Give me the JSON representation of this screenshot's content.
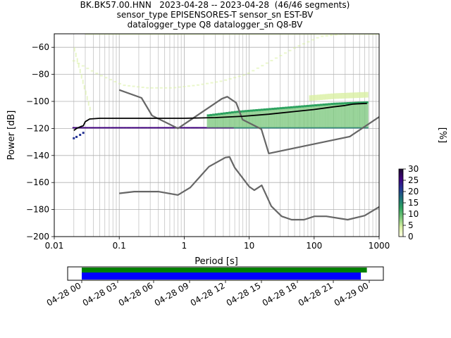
{
  "title_lines": [
    "BK.BK57.00.HNN   2023-04-28 -- 2023-04-28  (46/46 segments)",
    "sensor_type EPISENSORES-T sensor_sn EST-BV",
    "datalogger_type Q8 datalogger_sn Q8-BV"
  ],
  "colorbar": {
    "label": "[%]",
    "ticks": [
      "0",
      "5",
      "10",
      "15",
      "20",
      "25",
      "30"
    ],
    "range": [
      0,
      30
    ],
    "colors": [
      "#ffffe5",
      "#d9f0a3",
      "#78c679",
      "#2ca25f",
      "#1d6f7a",
      "#253494",
      "#3f007d",
      "#1b0a2e"
    ]
  },
  "timeline": {
    "tick_labels": [
      "04-28 00",
      "04-28 03",
      "04-28 06",
      "04-28 09",
      "04-28 12",
      "04-28 15",
      "04-28 18",
      "04-28 21",
      "04-29 00"
    ],
    "green_color": "#008000",
    "blue_color": "#0000ff",
    "green_span_hours": [
      0,
      23.8
    ],
    "blue_span_hours": [
      0,
      23.3
    ]
  },
  "chart_data": {
    "type": "line",
    "xlabel": "Period [s]",
    "ylabel": "Power [dB]",
    "x_scale": "log",
    "xlim": [
      0.01,
      1000
    ],
    "ylim": [
      -200,
      -50
    ],
    "x_ticks": [
      {
        "value": 0.01,
        "label": "0.01"
      },
      {
        "value": 0.1,
        "label": "0.1"
      },
      {
        "value": 1,
        "label": "1"
      },
      {
        "value": 10,
        "label": "10"
      },
      {
        "value": 100,
        "label": "100"
      },
      {
        "value": 1000,
        "label": "1000"
      }
    ],
    "y_ticks": [
      {
        "value": -60,
        "label": "−60"
      },
      {
        "value": -80,
        "label": "−80"
      },
      {
        "value": -100,
        "label": "−100"
      },
      {
        "value": -120,
        "label": "−120"
      },
      {
        "value": -140,
        "label": "−140"
      },
      {
        "value": -160,
        "label": "−160"
      },
      {
        "value": -180,
        "label": "−180"
      },
      {
        "value": -200,
        "label": "−200"
      }
    ],
    "grid": true,
    "series": [
      {
        "role": "noise-model-high",
        "color": "#666666",
        "points": [
          [
            0.1,
            -91.5
          ],
          [
            0.22,
            -97.4
          ],
          [
            0.32,
            -110.5
          ],
          [
            0.8,
            -120
          ],
          [
            3.8,
            -98
          ],
          [
            4.6,
            -96.5
          ],
          [
            6.3,
            -101
          ],
          [
            7.9,
            -113.5
          ],
          [
            15.4,
            -120.5
          ],
          [
            20,
            -138.5
          ],
          [
            354,
            -126
          ],
          [
            1000,
            -111.5
          ]
        ]
      },
      {
        "role": "noise-model-low",
        "color": "#666666",
        "points": [
          [
            0.1,
            -168
          ],
          [
            0.17,
            -166.7
          ],
          [
            0.4,
            -166.7
          ],
          [
            0.8,
            -169.2
          ],
          [
            1.24,
            -163.7
          ],
          [
            2.4,
            -148.3
          ],
          [
            4.3,
            -141.5
          ],
          [
            5.0,
            -141.1
          ],
          [
            6.0,
            -149
          ],
          [
            10,
            -163
          ],
          [
            12,
            -165.7
          ],
          [
            15.6,
            -162.1
          ],
          [
            21.9,
            -177.5
          ],
          [
            31.6,
            -185
          ],
          [
            45,
            -187.5
          ],
          [
            70,
            -187.5
          ],
          [
            101,
            -185
          ],
          [
            154,
            -185
          ],
          [
            328,
            -187.5
          ],
          [
            600,
            -184.5
          ],
          [
            1000,
            -178
          ]
        ]
      },
      {
        "role": "mean",
        "color": "#000000",
        "points": [
          [
            0.02,
            -121.5
          ],
          [
            0.022,
            -120
          ],
          [
            0.026,
            -118.5
          ],
          [
            0.028,
            -118
          ],
          [
            0.03,
            -115
          ],
          [
            0.035,
            -113
          ],
          [
            0.05,
            -112.5
          ],
          [
            0.1,
            -112.5
          ],
          [
            0.5,
            -112.5
          ],
          [
            1,
            -112.5
          ],
          [
            3,
            -112
          ],
          [
            8,
            -111
          ],
          [
            20,
            -109.5
          ],
          [
            50,
            -107.5
          ],
          [
            100,
            -106
          ],
          [
            200,
            -104
          ],
          [
            300,
            -103
          ],
          [
            400,
            -102
          ],
          [
            500,
            -101.7
          ],
          [
            650,
            -101.5
          ]
        ]
      }
    ],
    "pdf_density": {
      "description": "probability density of PSD values, percent",
      "main_band": {
        "x_range": [
          0.02,
          650
        ],
        "y_start": -119.5,
        "y_end": [
          -118,
          -117,
          -115,
          -113,
          -111,
          -108,
          -106,
          -104,
          -102,
          -101
        ]
      },
      "sparse_upper": {
        "x_range": [
          0.02,
          300
        ],
        "values_db": [
          -70,
          -80,
          -88,
          -90,
          -90,
          -88,
          -85,
          -80,
          -70,
          -60,
          -52,
          -50
        ]
      }
    }
  }
}
